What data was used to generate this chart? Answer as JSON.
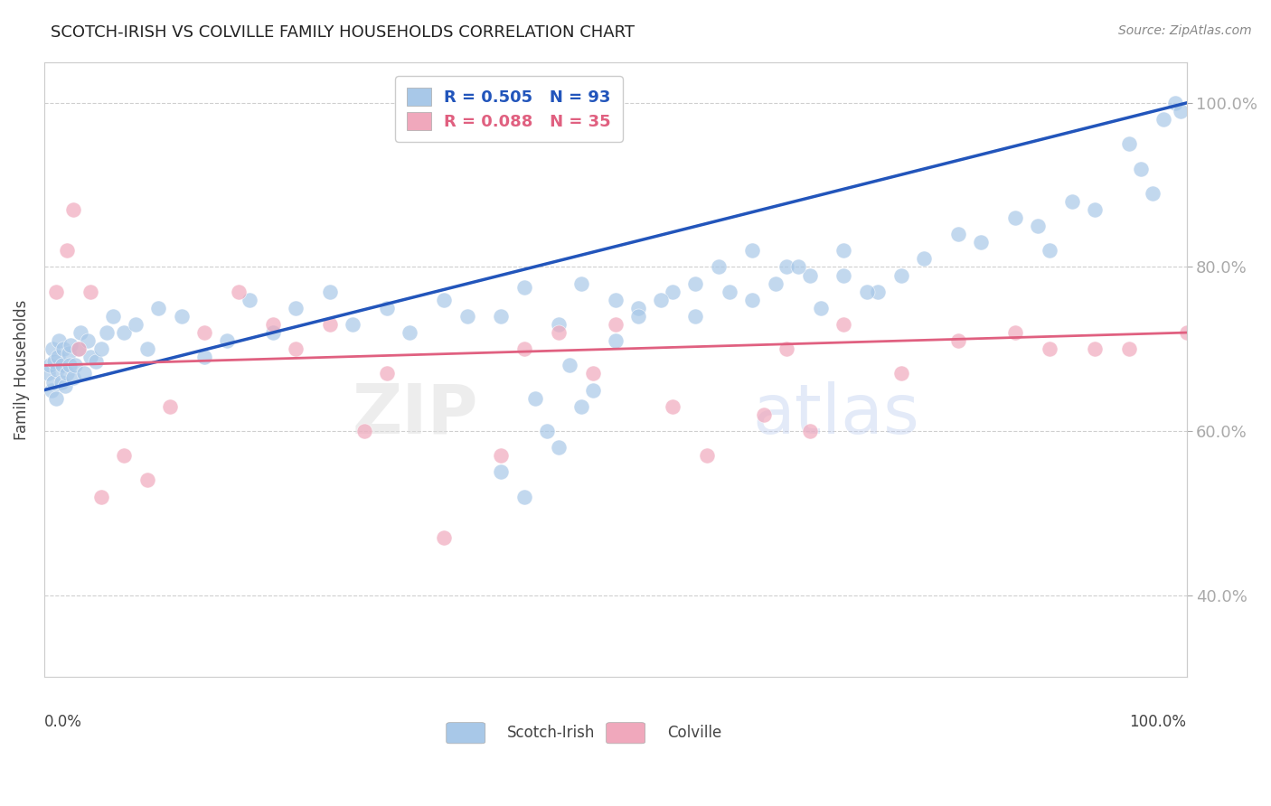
{
  "title": "SCOTCH-IRISH VS COLVILLE FAMILY HOUSEHOLDS CORRELATION CHART",
  "source": "Source: ZipAtlas.com",
  "ylabel": "Family Households",
  "blue_label": "Scotch-Irish",
  "pink_label": "Colville",
  "blue_R": 0.505,
  "blue_N": 93,
  "pink_R": 0.088,
  "pink_N": 35,
  "blue_color": "#A8C8E8",
  "pink_color": "#F0A8BC",
  "blue_line_color": "#2255BB",
  "pink_line_color": "#E06080",
  "xlim": [
    0,
    100
  ],
  "ylim": [
    30,
    105
  ],
  "yticks": [
    40,
    60,
    80,
    100
  ],
  "figsize": [
    14.06,
    8.92
  ],
  "dpi": 100,
  "blue_scatter_x": [
    0.3,
    0.5,
    0.6,
    0.7,
    0.8,
    0.9,
    1.0,
    1.1,
    1.2,
    1.3,
    1.5,
    1.6,
    1.7,
    1.8,
    2.0,
    2.1,
    2.2,
    2.3,
    2.5,
    2.7,
    3.0,
    3.2,
    3.5,
    3.8,
    4.0,
    4.5,
    5.0,
    5.5,
    6.0,
    7.0,
    8.0,
    9.0,
    10.0,
    12.0,
    14.0,
    16.0,
    18.0,
    20.0,
    22.0,
    25.0,
    27.0,
    30.0,
    32.0,
    35.0,
    37.0,
    40.0,
    42.0,
    45.0,
    47.0,
    50.0,
    52.0,
    55.0,
    57.0,
    60.0,
    62.0,
    65.0,
    67.0,
    70.0,
    73.0,
    75.0,
    77.0,
    80.0,
    82.0,
    85.0,
    87.0,
    88.0,
    90.0,
    92.0,
    95.0,
    96.0,
    97.0,
    98.0,
    99.0,
    99.5,
    40.0,
    42.0,
    43.0,
    44.0,
    45.0,
    46.0,
    47.0,
    48.0,
    50.0,
    52.0,
    54.0,
    57.0,
    59.0,
    62.0,
    64.0,
    66.0,
    68.0,
    70.0,
    72.0
  ],
  "blue_scatter_y": [
    67.0,
    68.0,
    65.0,
    70.0,
    66.0,
    68.5,
    64.0,
    67.5,
    69.0,
    71.0,
    66.0,
    68.0,
    70.0,
    65.5,
    67.0,
    69.5,
    68.0,
    70.5,
    66.5,
    68.0,
    70.0,
    72.0,
    67.0,
    71.0,
    69.0,
    68.5,
    70.0,
    72.0,
    74.0,
    72.0,
    73.0,
    70.0,
    75.0,
    74.0,
    69.0,
    71.0,
    76.0,
    72.0,
    75.0,
    77.0,
    73.0,
    75.0,
    72.0,
    76.0,
    74.0,
    74.0,
    77.5,
    73.0,
    78.0,
    76.0,
    75.0,
    77.0,
    74.0,
    77.0,
    76.0,
    80.0,
    79.0,
    82.0,
    77.0,
    79.0,
    81.0,
    84.0,
    83.0,
    86.0,
    85.0,
    82.0,
    88.0,
    87.0,
    95.0,
    92.0,
    89.0,
    98.0,
    100.0,
    99.0,
    55.0,
    52.0,
    64.0,
    60.0,
    58.0,
    68.0,
    63.0,
    65.0,
    71.0,
    74.0,
    76.0,
    78.0,
    80.0,
    82.0,
    78.0,
    80.0,
    75.0,
    79.0,
    77.0
  ],
  "pink_scatter_x": [
    1.0,
    2.0,
    2.5,
    3.0,
    4.0,
    5.0,
    7.0,
    9.0,
    11.0,
    14.0,
    17.0,
    20.0,
    22.0,
    25.0,
    28.0,
    30.0,
    35.0,
    40.0,
    42.0,
    45.0,
    48.0,
    50.0,
    55.0,
    58.0,
    63.0,
    65.0,
    67.0,
    70.0,
    75.0,
    80.0,
    85.0,
    88.0,
    92.0,
    95.0,
    100.0
  ],
  "pink_scatter_y": [
    77.0,
    82.0,
    87.0,
    70.0,
    77.0,
    52.0,
    57.0,
    54.0,
    63.0,
    72.0,
    77.0,
    73.0,
    70.0,
    73.0,
    60.0,
    67.0,
    47.0,
    57.0,
    70.0,
    72.0,
    67.0,
    73.0,
    63.0,
    57.0,
    62.0,
    70.0,
    60.0,
    73.0,
    67.0,
    71.0,
    72.0,
    70.0,
    70.0,
    70.0,
    72.0
  ]
}
